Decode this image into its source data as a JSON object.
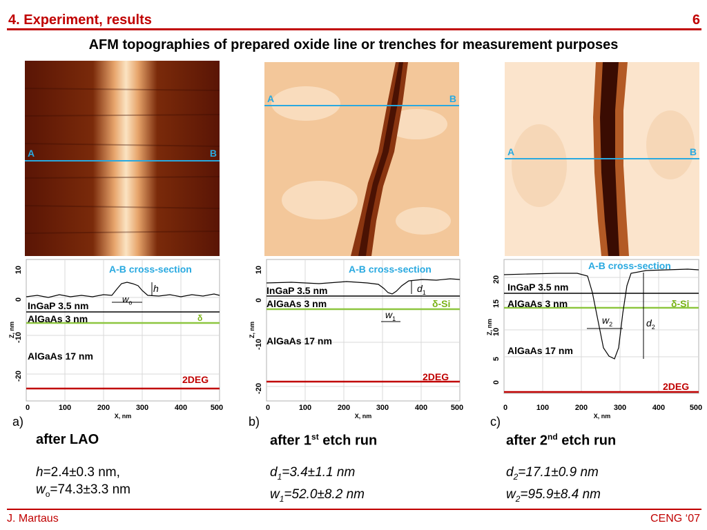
{
  "header": {
    "title": "4. Experiment, results",
    "slide_number": "6"
  },
  "subtitle": "AFM topographies of prepared oxide line or trenches for measurement purposes",
  "panels": [
    {
      "letter": "a)",
      "caption": "after LAO",
      "image_labels": {
        "a": "A",
        "b": "B"
      },
      "plot": {
        "title": "A-B cross-section",
        "layers": [
          "InGaP 3.5 nm",
          "AlGaAs 3 nm",
          "AlGaAs 17 nm"
        ],
        "delta": "δ",
        "deg": "2DEG",
        "h_label": "h",
        "w_label": "w",
        "w_sub": "o",
        "xlabel": "X, nm",
        "ylabel": "Z, nm",
        "xticks": [
          "0",
          "100",
          "200",
          "300",
          "400",
          "500"
        ],
        "yticks": [
          "10",
          "0",
          "-10",
          "-20"
        ]
      },
      "results": [
        {
          "symbol": "h",
          "sub": "",
          "value": "=2.4±0.3 nm,"
        },
        {
          "symbol": "w",
          "sub": "o",
          "value": "=74.3±3.3 nm"
        }
      ]
    },
    {
      "letter": "b)",
      "caption_main": "after 1",
      "caption_sup": "st",
      "caption_rest": " etch run",
      "image_labels": {
        "a": "A",
        "b": "B"
      },
      "plot": {
        "title": "A-B cross-section",
        "layers": [
          "InGaP 3.5 nm",
          "AlGaAs 3 nm",
          "AlGaAs 17 nm"
        ],
        "delta": "δ-Si",
        "deg": "2DEG",
        "d_label": "d",
        "d_sub": "1",
        "w_label": "w",
        "w_sub": "1",
        "xlabel": "X, nm",
        "ylabel": "Z, nm",
        "xticks": [
          "0",
          "100",
          "200",
          "300",
          "400",
          "500"
        ],
        "yticks": [
          "10",
          "0",
          "-10",
          "-20"
        ]
      },
      "results": [
        {
          "symbol": "d",
          "sub": "1",
          "value": "=3.4±1.1 nm"
        },
        {
          "symbol": "w",
          "sub": "1",
          "value": "=52.0±8.2 nm"
        }
      ]
    },
    {
      "letter": "c)",
      "caption_main": "after 2",
      "caption_sup": "nd",
      "caption_rest": " etch run",
      "image_labels": {
        "a": "A",
        "b": "B"
      },
      "plot": {
        "title": "A-B cross-section",
        "layers": [
          "InGaP 3.5 nm",
          "AlGaAs 3 nm",
          "AlGaAs 17 nm"
        ],
        "delta": "δ-Si",
        "deg": "2DEG",
        "d_label": "d",
        "d_sub": "2",
        "w_label": "w",
        "w_sub": "2",
        "xlabel": "X, nm",
        "ylabel": "Z, nm",
        "xticks": [
          "0",
          "100",
          "200",
          "300",
          "400",
          "500"
        ],
        "yticks": [
          "20",
          "15",
          "10",
          "5",
          "0"
        ]
      },
      "results": [
        {
          "symbol": "d",
          "sub": "2",
          "value": "=17.1±0.9 nm"
        },
        {
          "symbol": "w",
          "sub": "2",
          "value": "=95.9±8.4 nm"
        }
      ]
    }
  ],
  "footer": {
    "author": "J. Martaus",
    "conference": "CENG ‘07"
  },
  "colors": {
    "accent": "#c00000",
    "cross_section": "#29a9e0",
    "delta_line": "#8dc63f",
    "deg_line": "#c00000"
  }
}
